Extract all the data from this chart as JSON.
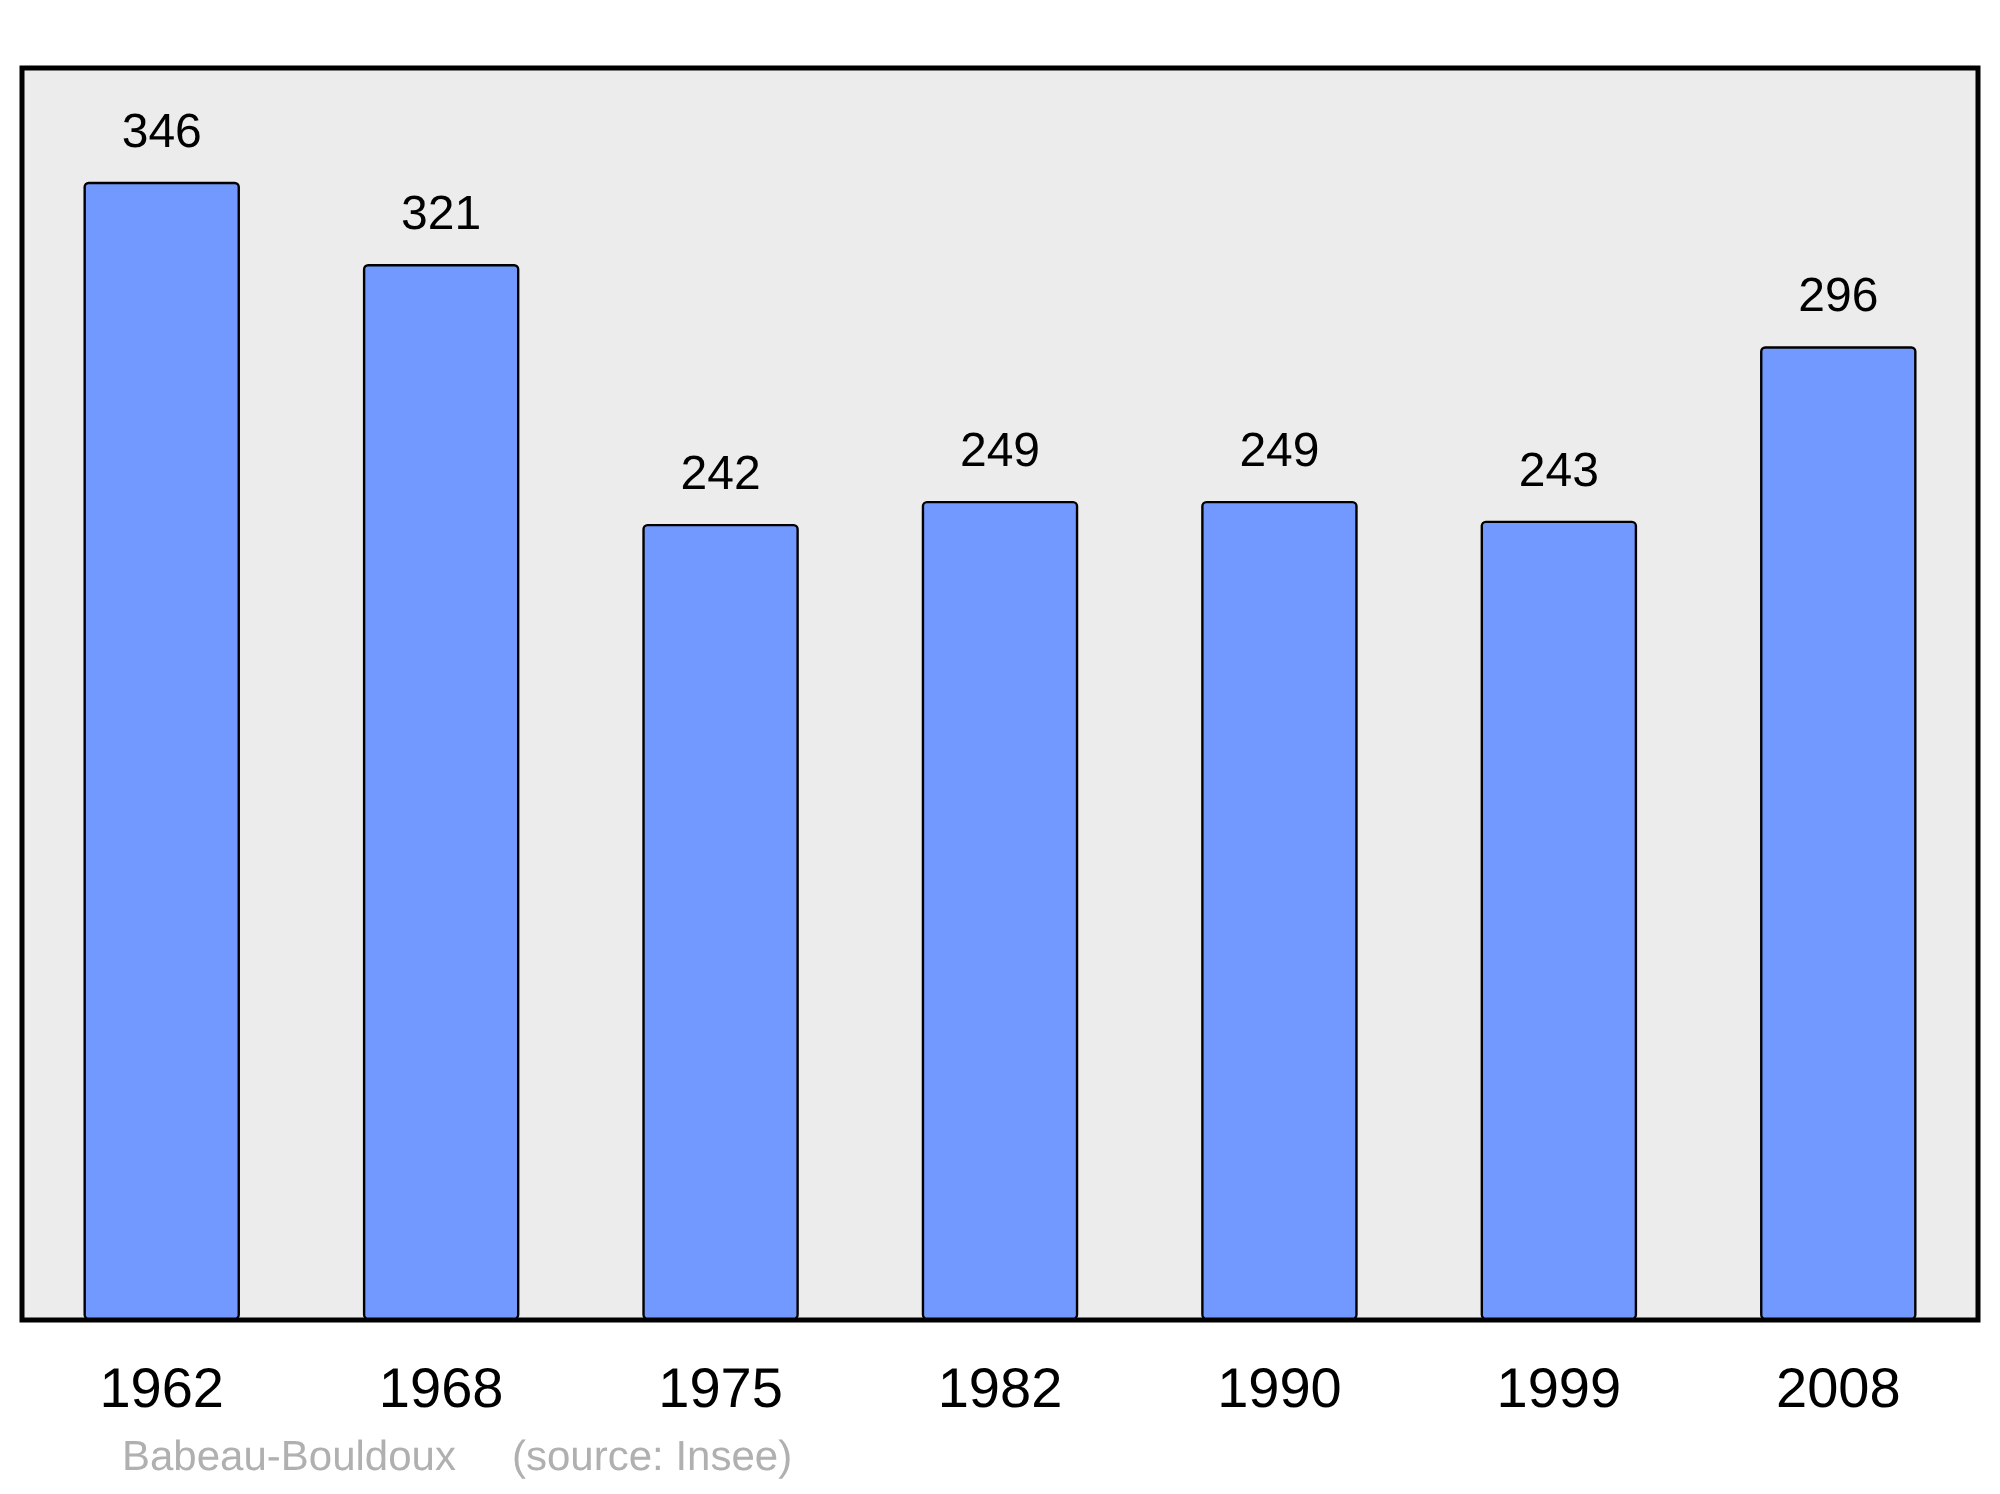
{
  "chart_data": {
    "type": "bar",
    "categories": [
      "1962",
      "1968",
      "1975",
      "1982",
      "1990",
      "1999",
      "2008"
    ],
    "values": [
      346,
      321,
      242,
      249,
      249,
      243,
      296
    ],
    "color": "#7299ff",
    "data_labels": true,
    "annotations": [
      "Babeau-Bouldoux",
      "(source: Insee)"
    ]
  }
}
